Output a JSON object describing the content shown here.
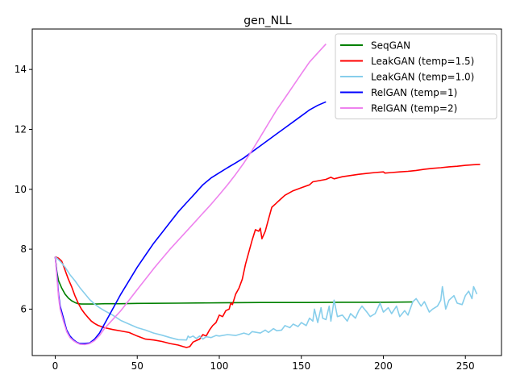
{
  "chart_data": {
    "type": "line",
    "title": "gen_NLL",
    "xlabel": "",
    "ylabel": "",
    "xlim": [
      -14,
      272
    ],
    "ylim": [
      4.45,
      15.35
    ],
    "xticks": [
      0,
      50,
      100,
      150,
      200,
      250
    ],
    "yticks": [
      6,
      8,
      10,
      12,
      14
    ],
    "grid": false,
    "legend_position": "top-right",
    "series": [
      {
        "name": "SeqGAN",
        "color": "#008000",
        "x": [
          0,
          1,
          2,
          4,
          6,
          8,
          10,
          12,
          14,
          16,
          20,
          25,
          30,
          40,
          50,
          75,
          100,
          125,
          150,
          175,
          200,
          218
        ],
        "y": [
          7.75,
          7.25,
          6.95,
          6.7,
          6.5,
          6.37,
          6.28,
          6.22,
          6.18,
          6.17,
          6.17,
          6.17,
          6.18,
          6.18,
          6.19,
          6.2,
          6.21,
          6.22,
          6.22,
          6.23,
          6.23,
          6.24
        ]
      },
      {
        "name": "LeakGAN (temp=1.5)",
        "color": "#ff0000",
        "x": [
          0,
          2,
          4,
          6,
          8,
          10,
          12,
          14,
          16,
          18,
          20,
          22,
          24,
          26,
          28,
          30,
          35,
          40,
          45,
          50,
          55,
          60,
          65,
          70,
          75,
          78,
          80,
          82,
          84,
          86,
          88,
          90,
          92,
          94,
          96,
          98,
          100,
          102,
          104,
          106,
          107,
          108,
          110,
          112,
          114,
          116,
          118,
          120,
          122,
          124,
          125,
          126,
          128,
          130,
          132,
          134,
          136,
          138,
          140,
          145,
          150,
          155,
          157,
          160,
          165,
          168,
          170,
          175,
          180,
          185,
          190,
          195,
          200,
          201,
          205,
          210,
          215,
          220,
          225,
          230,
          235,
          240,
          245,
          250,
          255,
          259
        ],
        "y": [
          7.75,
          7.7,
          7.6,
          7.3,
          7.0,
          6.75,
          6.45,
          6.2,
          6.0,
          5.85,
          5.72,
          5.6,
          5.52,
          5.46,
          5.42,
          5.38,
          5.32,
          5.27,
          5.22,
          5.1,
          5.0,
          4.97,
          4.92,
          4.85,
          4.8,
          4.75,
          4.72,
          4.75,
          4.9,
          4.95,
          5.0,
          5.15,
          5.1,
          5.3,
          5.45,
          5.55,
          5.8,
          5.75,
          5.95,
          6.0,
          6.2,
          6.15,
          6.5,
          6.7,
          7.0,
          7.5,
          7.9,
          8.3,
          8.65,
          8.6,
          8.7,
          8.35,
          8.6,
          9.0,
          9.4,
          9.5,
          9.6,
          9.7,
          9.8,
          9.95,
          10.05,
          10.15,
          10.25,
          10.28,
          10.33,
          10.4,
          10.35,
          10.42,
          10.46,
          10.5,
          10.53,
          10.56,
          10.58,
          10.54,
          10.56,
          10.58,
          10.6,
          10.63,
          10.67,
          10.7,
          10.72,
          10.75,
          10.77,
          10.8,
          10.82,
          10.83
        ]
      },
      {
        "name": "LeakGAN (temp=1.0)",
        "color": "#87ceeb",
        "x": [
          0,
          3,
          6,
          9,
          12,
          15,
          18,
          21,
          24,
          27,
          30,
          35,
          40,
          45,
          50,
          55,
          60,
          65,
          70,
          75,
          80,
          81,
          82,
          84,
          86,
          88,
          90,
          92,
          95,
          98,
          100,
          105,
          110,
          115,
          118,
          120,
          125,
          128,
          130,
          133,
          135,
          138,
          140,
          143,
          145,
          148,
          150,
          153,
          155,
          157,
          158,
          160,
          162,
          163,
          165,
          167,
          168,
          170,
          172,
          175,
          178,
          180,
          183,
          185,
          187,
          190,
          192,
          195,
          198,
          200,
          203,
          205,
          208,
          210,
          213,
          215,
          218,
          220,
          223,
          225,
          228,
          230,
          233,
          235,
          236,
          238,
          240,
          243,
          245,
          248,
          250,
          252,
          254,
          255,
          257
        ],
        "y": [
          7.75,
          7.6,
          7.4,
          7.15,
          6.95,
          6.72,
          6.52,
          6.32,
          6.17,
          6.05,
          5.95,
          5.8,
          5.62,
          5.5,
          5.38,
          5.3,
          5.2,
          5.13,
          5.05,
          4.98,
          4.97,
          5.1,
          5.05,
          5.1,
          5.02,
          5.1,
          5.0,
          5.08,
          5.05,
          5.12,
          5.1,
          5.15,
          5.12,
          5.2,
          5.15,
          5.25,
          5.2,
          5.3,
          5.22,
          5.35,
          5.28,
          5.3,
          5.45,
          5.38,
          5.5,
          5.42,
          5.55,
          5.45,
          5.7,
          5.6,
          6.0,
          5.55,
          6.05,
          5.7,
          5.65,
          6.1,
          5.6,
          6.3,
          5.75,
          5.8,
          5.6,
          5.85,
          5.7,
          5.95,
          6.1,
          5.9,
          5.75,
          5.85,
          6.2,
          5.9,
          6.05,
          5.85,
          6.1,
          5.75,
          5.95,
          5.8,
          6.25,
          6.35,
          6.1,
          6.25,
          5.9,
          6.0,
          6.1,
          6.3,
          6.75,
          6.0,
          6.3,
          6.45,
          6.2,
          6.15,
          6.45,
          6.6,
          6.35,
          6.75,
          6.5
        ]
      },
      {
        "name": "RelGAN (temp=1)",
        "color": "#0000ff",
        "x": [
          0,
          1,
          2,
          3,
          5,
          7,
          9,
          11,
          13,
          15,
          18,
          21,
          24,
          27,
          30,
          35,
          40,
          45,
          50,
          55,
          60,
          65,
          70,
          75,
          80,
          85,
          90,
          95,
          100,
          105,
          110,
          115,
          120,
          125,
          130,
          135,
          140,
          145,
          150,
          155,
          160,
          165
        ],
        "y": [
          7.75,
          7.2,
          6.5,
          6.1,
          5.7,
          5.3,
          5.1,
          4.98,
          4.9,
          4.85,
          4.85,
          4.87,
          5.0,
          5.2,
          5.5,
          6.0,
          6.5,
          6.95,
          7.4,
          7.8,
          8.2,
          8.55,
          8.9,
          9.25,
          9.55,
          9.85,
          10.15,
          10.38,
          10.55,
          10.72,
          10.88,
          11.05,
          11.25,
          11.45,
          11.65,
          11.85,
          12.05,
          12.25,
          12.45,
          12.65,
          12.8,
          12.92
        ]
      },
      {
        "name": "RelGAN (temp=2)",
        "color": "#ee82ee",
        "x": [
          0,
          1,
          2,
          3,
          5,
          7,
          9,
          11,
          13,
          15,
          18,
          21,
          24,
          27,
          30,
          35,
          40,
          45,
          50,
          55,
          60,
          65,
          70,
          75,
          80,
          85,
          90,
          95,
          100,
          105,
          110,
          115,
          120,
          125,
          130,
          135,
          140,
          145,
          150,
          155,
          160,
          165
        ],
        "y": [
          7.75,
          7.1,
          6.4,
          6.0,
          5.6,
          5.25,
          5.05,
          4.95,
          4.88,
          4.83,
          4.82,
          4.85,
          4.95,
          5.12,
          5.35,
          5.65,
          5.95,
          6.3,
          6.65,
          7.0,
          7.35,
          7.68,
          8.0,
          8.3,
          8.6,
          8.9,
          9.2,
          9.5,
          9.82,
          10.15,
          10.5,
          10.88,
          11.3,
          11.75,
          12.2,
          12.65,
          13.05,
          13.45,
          13.85,
          14.25,
          14.55,
          14.85
        ]
      }
    ]
  }
}
